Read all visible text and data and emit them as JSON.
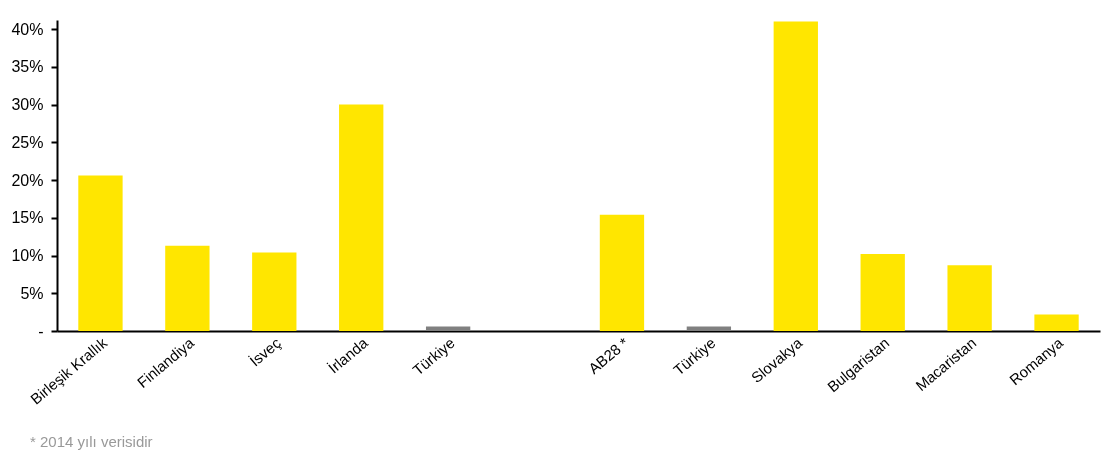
{
  "chart_data": {
    "type": "bar",
    "categories": [
      "Birleşik Krallık",
      "Finlandiya",
      "İsveç",
      "İrlanda",
      "Türkiye",
      null,
      "AB28 *",
      "Türkiye",
      "Slovakya",
      "Bulgaristan",
      "Macaristan",
      "Romanya"
    ],
    "values": [
      20.6,
      11.3,
      10.4,
      30,
      0.6,
      null,
      15.4,
      0.6,
      41,
      10.2,
      8.7,
      2.2
    ],
    "colors": [
      "#ffe600",
      "#ffe600",
      "#ffe600",
      "#ffe600",
      "#808080",
      null,
      "#ffe600",
      "#808080",
      "#ffe600",
      "#ffe600",
      "#ffe600",
      "#ffe600"
    ],
    "ylim": [
      0,
      41.2
    ],
    "yticks": [
      {
        "value": 0,
        "label": "-"
      },
      {
        "value": 5,
        "label": "5%"
      },
      {
        "value": 10,
        "label": "10%"
      },
      {
        "value": 15,
        "label": "15%"
      },
      {
        "value": 20,
        "label": "20%"
      },
      {
        "value": 25,
        "label": "25%"
      },
      {
        "value": 30,
        "label": "30%"
      },
      {
        "value": 35,
        "label": "35%"
      },
      {
        "value": 40,
        "label": "40%"
      }
    ],
    "grid": false,
    "annotations": [
      "* 2014 yılı verisidir"
    ]
  }
}
